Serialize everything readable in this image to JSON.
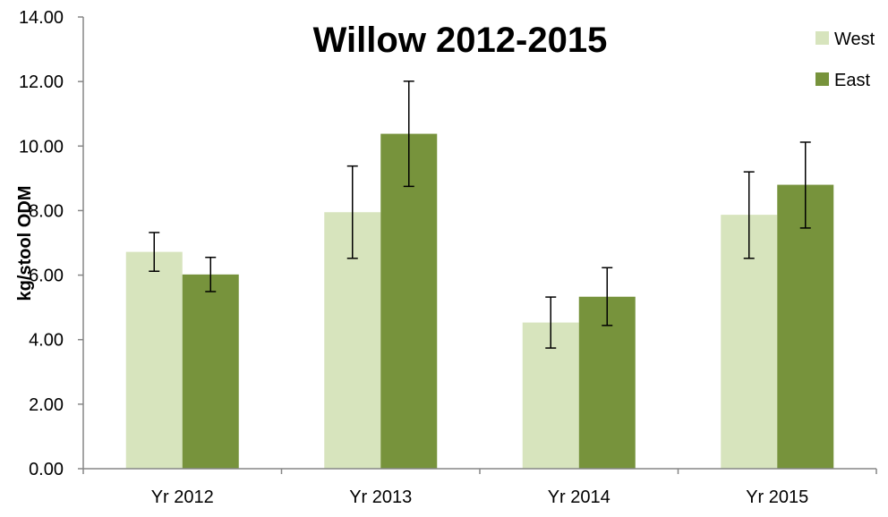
{
  "chart_data": {
    "type": "bar",
    "title": "Willow 2012-2015",
    "ylabel": "kg/stool ODM",
    "xlabel": "",
    "categories": [
      "Yr 2012",
      "Yr 2013",
      "Yr 2014",
      "Yr 2015"
    ],
    "ylim": [
      0,
      14
    ],
    "yticks": [
      "0.00",
      "2.00",
      "4.00",
      "6.00",
      "8.00",
      "10.00",
      "12.00",
      "14.00"
    ],
    "series": [
      {
        "name": "West",
        "color": "#d7e4bd",
        "values": [
          6.72,
          7.95,
          4.53,
          7.87
        ],
        "error_low": [
          6.12,
          6.52,
          3.74,
          6.52
        ],
        "error_high": [
          7.32,
          9.38,
          5.32,
          9.2
        ]
      },
      {
        "name": "East",
        "color": "#77933c",
        "values": [
          6.02,
          10.38,
          5.33,
          8.8
        ],
        "error_low": [
          5.49,
          8.75,
          4.44,
          7.46
        ],
        "error_high": [
          6.55,
          12.01,
          6.23,
          10.12
        ]
      }
    ],
    "legend_position": "top-right",
    "grid": false
  }
}
